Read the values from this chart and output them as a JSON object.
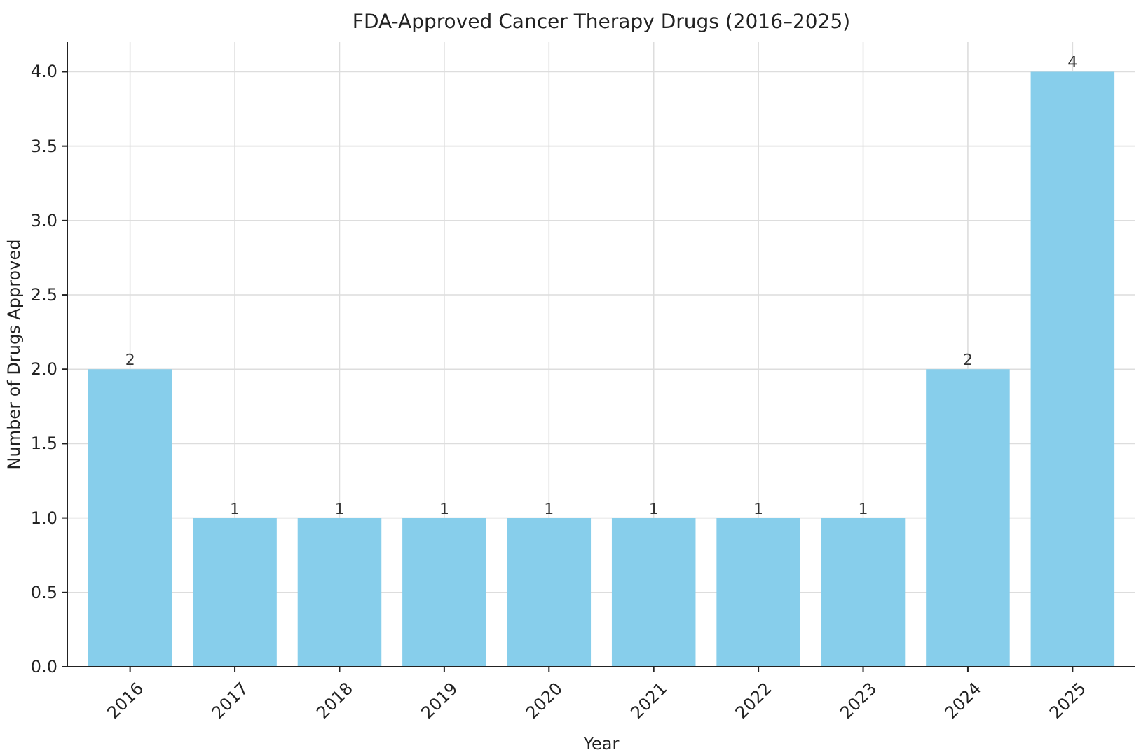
{
  "chart_data": {
    "type": "bar",
    "title": "FDA-Approved Cancer Therapy Drugs (2016–2025)",
    "xlabel": "Year",
    "ylabel": "Number of Drugs Approved",
    "categories": [
      "2016",
      "2017",
      "2018",
      "2019",
      "2020",
      "2021",
      "2022",
      "2023",
      "2024",
      "2025"
    ],
    "values": [
      2,
      1,
      1,
      1,
      1,
      1,
      1,
      1,
      2,
      4
    ],
    "color": "#87ceeb",
    "ylim": [
      0,
      4.2
    ],
    "yticks": [
      {
        "value": 0,
        "label": "0.0"
      },
      {
        "value": 0.5,
        "label": "0.5"
      },
      {
        "value": 1,
        "label": "1.0"
      },
      {
        "value": 1.5,
        "label": "1.5"
      },
      {
        "value": 2,
        "label": "2.0"
      },
      {
        "value": 2.5,
        "label": "2.5"
      },
      {
        "value": 3,
        "label": "3.0"
      },
      {
        "value": 3.5,
        "label": "3.5"
      },
      {
        "value": 4,
        "label": "4.0"
      }
    ],
    "grid": true,
    "data_labels": true
  }
}
